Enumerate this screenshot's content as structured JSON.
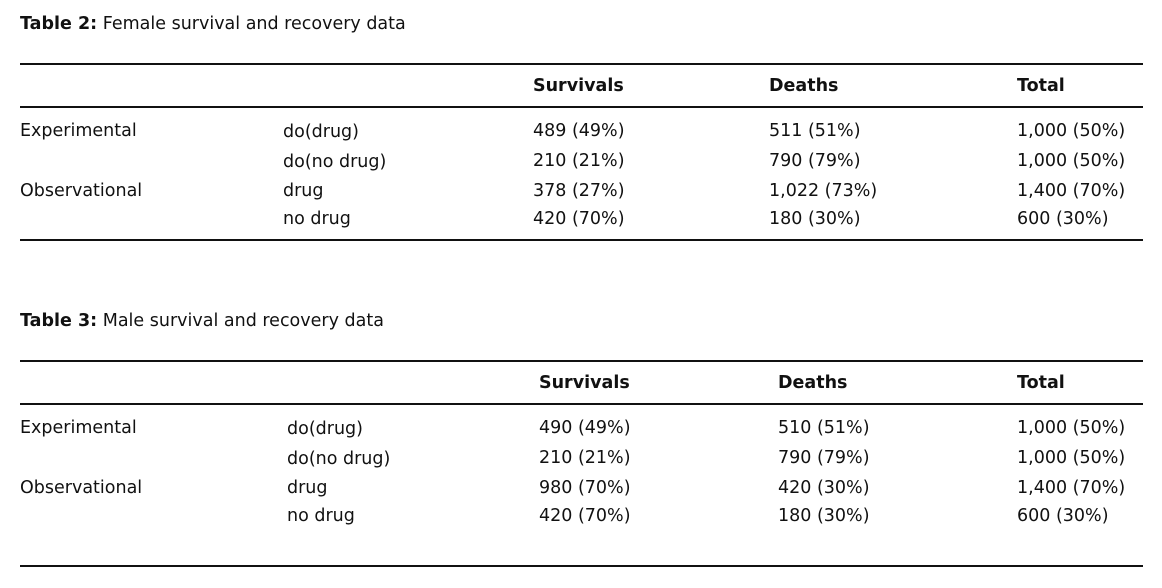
{
  "tables": [
    {
      "caption_label": "Table 2:",
      "caption_text": "Female survival and recovery data",
      "headers": [
        "Survivals",
        "Deaths",
        "Total"
      ],
      "groups": [
        "Experimental",
        "Observational"
      ],
      "rows": [
        {
          "treatment": "do(drug)",
          "survivals": "489 (49%)",
          "deaths": "511 (51%)",
          "total": "1,000 (50%)"
        },
        {
          "treatment": "do(no drug)",
          "survivals": "210 (21%)",
          "deaths": "790 (79%)",
          "total": "1,000 (50%)"
        },
        {
          "treatment": "drug",
          "survivals": "378 (27%)",
          "deaths": "1,022 (73%)",
          "total": "1,400 (70%)"
        },
        {
          "treatment": "no drug",
          "survivals": "420 (70%)",
          "deaths": "180 (30%)",
          "total": "600 (30%)"
        }
      ]
    },
    {
      "caption_label": "Table 3:",
      "caption_text": "Male survival and recovery data",
      "headers": [
        "Survivals",
        "Deaths",
        "Total"
      ],
      "groups": [
        "Experimental",
        "Observational"
      ],
      "rows": [
        {
          "treatment": "do(drug)",
          "survivals": "490 (49%)",
          "deaths": "510 (51%)",
          "total": "1,000 (50%)"
        },
        {
          "treatment": "do(no drug)",
          "survivals": "210 (21%)",
          "deaths": "790 (79%)",
          "total": "1,000 (50%)"
        },
        {
          "treatment": "drug",
          "survivals": "980 (70%)",
          "deaths": "420 (30%)",
          "total": "1,400 (70%)"
        },
        {
          "treatment": "no drug",
          "survivals": "420 (70%)",
          "deaths": "180 (30%)",
          "total": "600 (30%)"
        }
      ]
    }
  ]
}
